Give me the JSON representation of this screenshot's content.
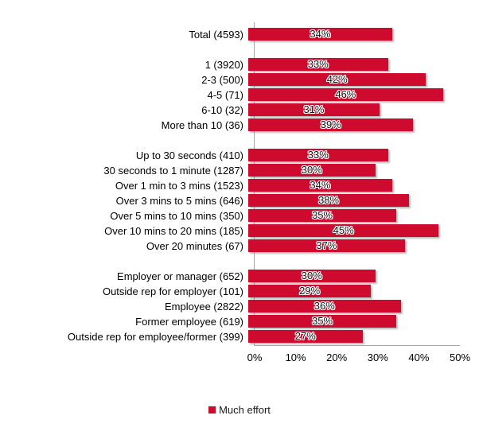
{
  "chart_data": {
    "type": "bar",
    "orientation": "horizontal",
    "title": "",
    "xlabel": "",
    "ylabel": "",
    "xlim": [
      0,
      50
    ],
    "x_ticks": [
      "0%",
      "10%",
      "20%",
      "30%",
      "40%",
      "50%"
    ],
    "grid": false,
    "legend_position": "bottom-center",
    "value_suffix": "%",
    "series_name": "Much effort",
    "groups": [
      {
        "items": [
          {
            "label": "Total (4593)",
            "value": 34
          }
        ]
      },
      {
        "items": [
          {
            "label": "1 (3920)",
            "value": 33
          },
          {
            "label": "2-3 (500)",
            "value": 42
          },
          {
            "label": "4-5 (71)",
            "value": 46
          },
          {
            "label": "6-10 (32)",
            "value": 31
          },
          {
            "label": "More than 10 (36)",
            "value": 39
          }
        ]
      },
      {
        "items": [
          {
            "label": "Up to 30 seconds (410)",
            "value": 33
          },
          {
            "label": "30 seconds to 1 minute (1287)",
            "value": 30
          },
          {
            "label": "Over 1 min to 3 mins (1523)",
            "value": 34
          },
          {
            "label": "Over 3 mins to 5 mins (646)",
            "value": 38
          },
          {
            "label": "Over 5 mins to 10 mins (350)",
            "value": 35
          },
          {
            "label": "Over 10 mins to 20 mins (185)",
            "value": 45
          },
          {
            "label": "Over 20 minutes (67)",
            "value": 37
          }
        ]
      },
      {
        "items": [
          {
            "label": "Employer or manager (652)",
            "value": 30
          },
          {
            "label": "Outside rep for employer (101)",
            "value": 29
          },
          {
            "label": "Employee (2822)",
            "value": 36
          },
          {
            "label": "Former employee (619)",
            "value": 35
          },
          {
            "label": "Outside rep for employee/former (399)",
            "value": 27
          }
        ]
      }
    ]
  },
  "legend": {
    "label": "Much effort"
  },
  "colors": {
    "bar": "#ce0a2e",
    "axis": "#a6a6a6",
    "text": "#000000"
  }
}
